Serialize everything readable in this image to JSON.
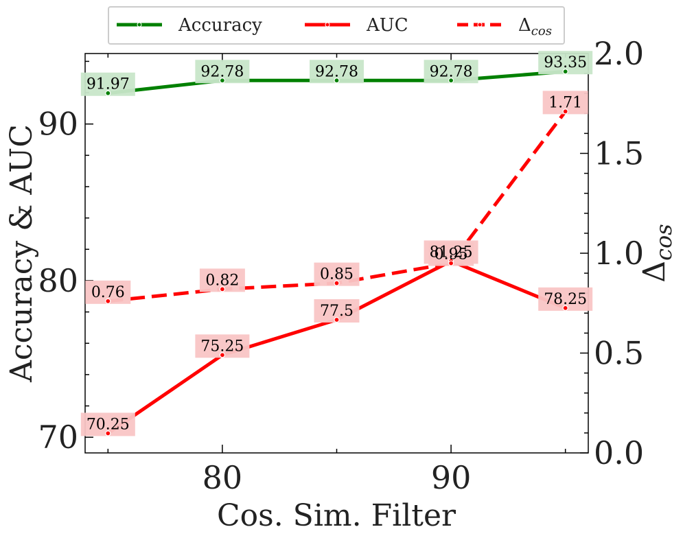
{
  "chart_data": {
    "type": "line",
    "xlabel": "Cos. Sim. Filter",
    "ylabel_left": "Accuracy & AUC",
    "ylabel_right_base": "Δ",
    "ylabel_right_sub": "cos",
    "x": [
      75,
      80,
      85,
      90,
      95
    ],
    "xlim": [
      74,
      96
    ],
    "xticks": [
      80,
      90
    ],
    "ylim_left": [
      69,
      94.5
    ],
    "yticks_left": [
      70,
      80,
      90
    ],
    "ylim_right": [
      0,
      2
    ],
    "yticks_right": [
      "0.0",
      "0.5",
      "1.0",
      "1.5",
      "2.0"
    ],
    "legend_position": "top-center",
    "series": [
      {
        "name": "Accuracy",
        "axis": "left",
        "style": "solid",
        "color": "#008000",
        "values": [
          91.97,
          92.78,
          92.78,
          92.78,
          93.35
        ],
        "labels": [
          "91.97",
          "92.78",
          "92.78",
          "92.78",
          "93.35"
        ]
      },
      {
        "name": "AUC",
        "axis": "left",
        "style": "solid",
        "color": "#ff0000",
        "values": [
          70.25,
          75.25,
          77.5,
          81.25,
          78.25
        ],
        "labels": [
          "70.25",
          "75.25",
          "77.5",
          "81.25",
          "78.25"
        ]
      },
      {
        "name_base": "Δ",
        "name_sub": "cos",
        "axis": "right",
        "style": "dashed",
        "color": "#ff0000",
        "values": [
          0.76,
          0.82,
          0.85,
          0.95,
          1.71
        ],
        "labels": [
          "0.76",
          "0.82",
          "0.85",
          "0.95",
          "1.71"
        ]
      }
    ],
    "label_box_colors": {
      "green": "#c8e6c9",
      "red": "#f9c5c5"
    }
  }
}
